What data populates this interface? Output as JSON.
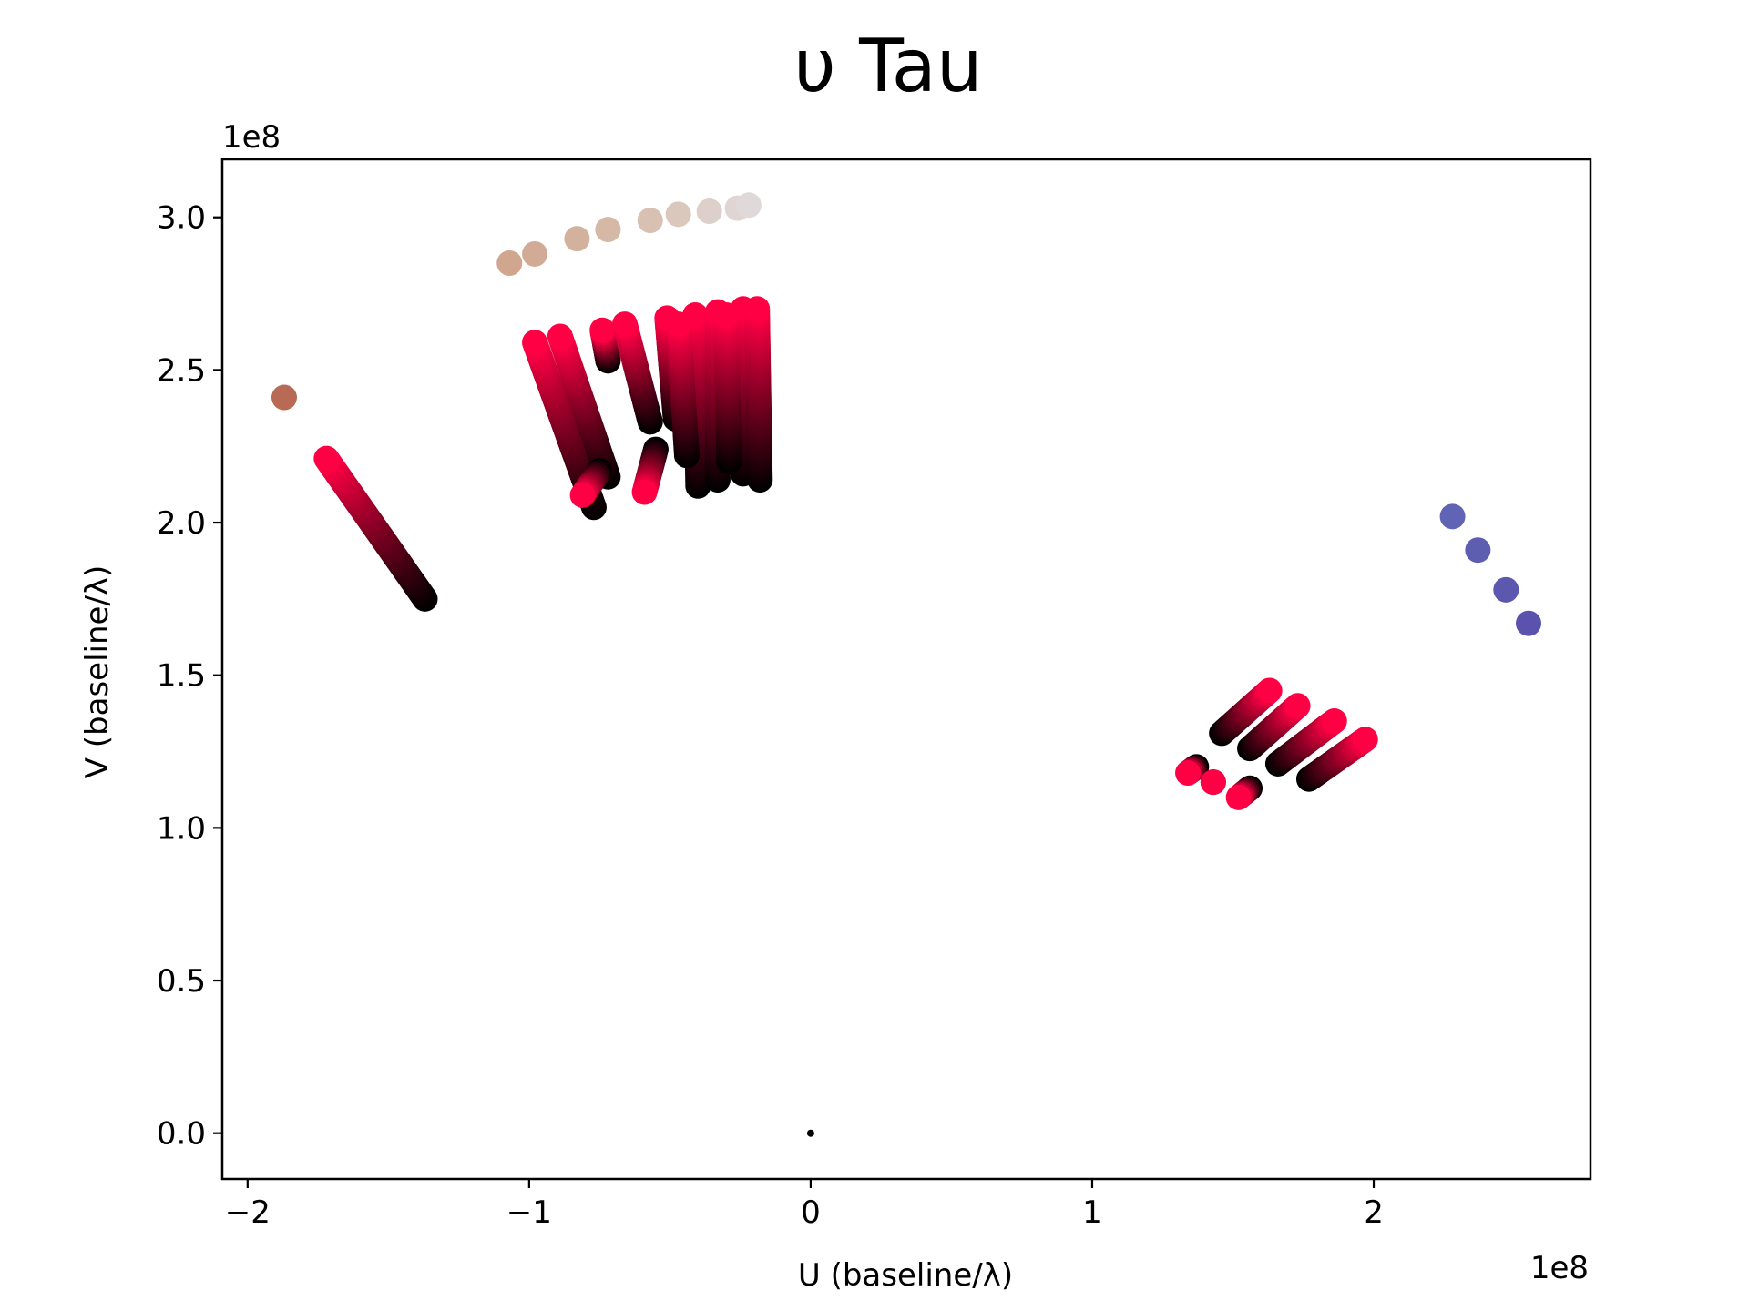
{
  "chart_data": {
    "type": "scatter",
    "title": "υ Tau",
    "xlabel": "U (baseline/λ)",
    "ylabel": "V (baseline/λ)",
    "x_offset_label": "1e8",
    "y_offset_label": "1e8",
    "xlim": [
      -2.09,
      2.77
    ],
    "ylim": [
      -0.15,
      3.19
    ],
    "x_ticks": [
      -2,
      -1,
      0,
      1,
      2
    ],
    "x_tick_labels": [
      "−2",
      "−1",
      "0",
      "1",
      "2"
    ],
    "y_ticks": [
      0.0,
      0.5,
      1.0,
      1.5,
      2.0,
      2.5,
      3.0
    ],
    "y_tick_labels": [
      "0.0",
      "0.5",
      "1.0",
      "1.5",
      "2.0",
      "2.5",
      "3.0"
    ],
    "grid": false,
    "legend": "none",
    "colors": {
      "hot_pink": "#ff0044",
      "black": "#000000",
      "brown": "#b86a55",
      "blue": "#5a52ad"
    },
    "point_groups": [
      {
        "kind": "dots",
        "points": [
          [
            -1.07,
            2.85,
            "#d1a68f"
          ],
          [
            -0.98,
            2.88,
            "#d1ab95"
          ],
          [
            -0.83,
            2.93,
            "#d3b29d"
          ],
          [
            -0.72,
            2.96,
            "#d5b8a5"
          ],
          [
            -0.57,
            2.99,
            "#d8c1b2"
          ],
          [
            -0.47,
            3.01,
            "#dbc8bd"
          ],
          [
            -0.36,
            3.02,
            "#ddcfc9"
          ],
          [
            -0.26,
            3.03,
            "#dfd6d3"
          ],
          [
            -0.22,
            3.04,
            "#e0d9d9"
          ]
        ]
      },
      {
        "kind": "dots",
        "points": [
          [
            -1.87,
            2.41,
            "#b86a55"
          ]
        ]
      },
      {
        "kind": "dots",
        "points": [
          [
            2.28,
            2.02,
            "#6164b4"
          ],
          [
            2.37,
            1.91,
            "#5e5eb1"
          ],
          [
            2.47,
            1.78,
            "#5b58ae"
          ],
          [
            2.55,
            1.67,
            "#5a52ad"
          ]
        ]
      },
      {
        "kind": "dots",
        "points": [
          [
            0.0,
            0.0,
            "#000000"
          ]
        ],
        "small": true
      },
      {
        "kind": "track",
        "from": [
          -1.72,
          2.21
        ],
        "to": [
          -1.37,
          1.75
        ]
      },
      {
        "kind": "track",
        "from": [
          -0.98,
          2.59
        ],
        "to": [
          -0.77,
          2.05
        ]
      },
      {
        "kind": "track",
        "from": [
          -0.89,
          2.61
        ],
        "to": [
          -0.72,
          2.15
        ]
      },
      {
        "kind": "track",
        "from": [
          -0.74,
          2.63
        ],
        "to": [
          -0.72,
          2.53
        ]
      },
      {
        "kind": "track",
        "from": [
          -0.66,
          2.65
        ],
        "to": [
          -0.57,
          2.33
        ]
      },
      {
        "kind": "track",
        "from": [
          -0.51,
          2.67
        ],
        "to": [
          -0.48,
          2.34
        ]
      },
      {
        "kind": "track",
        "from": [
          -0.41,
          2.68
        ],
        "to": [
          -0.4,
          2.12
        ]
      },
      {
        "kind": "track",
        "from": [
          -0.33,
          2.69
        ],
        "to": [
          -0.33,
          2.14
        ]
      },
      {
        "kind": "track",
        "from": [
          -0.24,
          2.7
        ],
        "to": [
          -0.24,
          2.16
        ]
      },
      {
        "kind": "track",
        "from": [
          -0.19,
          2.7
        ],
        "to": [
          -0.18,
          2.14
        ]
      },
      {
        "kind": "track",
        "from": [
          -0.47,
          2.65
        ],
        "to": [
          -0.44,
          2.22
        ]
      },
      {
        "kind": "track",
        "from": [
          -0.3,
          2.68
        ],
        "to": [
          -0.29,
          2.2
        ]
      },
      {
        "kind": "track",
        "from": [
          -0.59,
          2.1
        ],
        "to": [
          -0.55,
          2.24
        ]
      },
      {
        "kind": "track",
        "from": [
          -0.81,
          2.09
        ],
        "to": [
          -0.75,
          2.17
        ]
      },
      {
        "kind": "track",
        "from": [
          1.63,
          1.45
        ],
        "to": [
          1.46,
          1.31
        ]
      },
      {
        "kind": "track",
        "from": [
          1.73,
          1.4
        ],
        "to": [
          1.56,
          1.26
        ]
      },
      {
        "kind": "track",
        "from": [
          1.86,
          1.35
        ],
        "to": [
          1.66,
          1.21
        ]
      },
      {
        "kind": "track",
        "from": [
          1.97,
          1.29
        ],
        "to": [
          1.77,
          1.16
        ]
      },
      {
        "kind": "track",
        "from": [
          1.34,
          1.18
        ],
        "to": [
          1.37,
          1.2
        ]
      },
      {
        "kind": "track",
        "from": [
          1.52,
          1.1
        ],
        "to": [
          1.56,
          1.13
        ]
      },
      {
        "kind": "track",
        "from": [
          1.43,
          1.15
        ],
        "to": [
          1.43,
          1.15
        ]
      }
    ]
  }
}
